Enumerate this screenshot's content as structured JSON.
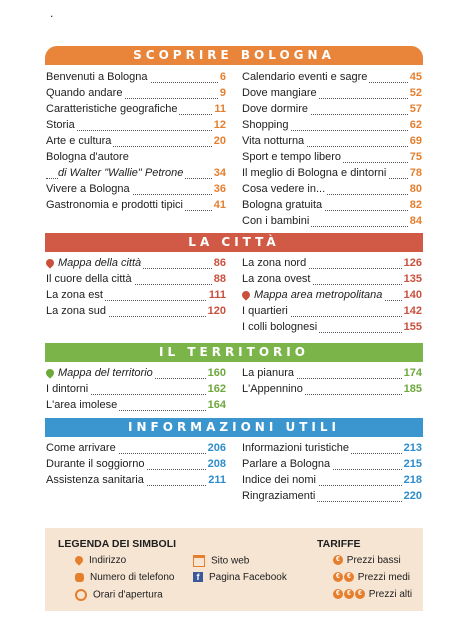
{
  "dot": ".",
  "sections": {
    "scoprire": {
      "title": "SCOPRIRE BOLOGNA",
      "left": [
        {
          "label": "Benvenuti a Bologna",
          "page": "6"
        },
        {
          "label": "Quando andare",
          "page": "9"
        },
        {
          "label": "Caratteristiche geografiche",
          "page": "11"
        },
        {
          "label": "Storia",
          "page": "12"
        },
        {
          "label": "Arte e cultura",
          "page": "20"
        },
        {
          "label": "Bologna d'autore",
          "page": ""
        },
        {
          "label": "di Walter \"Wallie\" Petrone",
          "page": "34"
        },
        {
          "label": "Vivere a Bologna",
          "page": "36"
        },
        {
          "label": "Gastronomia e prodotti tipici",
          "page": "41"
        }
      ],
      "right": [
        {
          "label": "Calendario eventi e sagre",
          "page": "45"
        },
        {
          "label": "Dove mangiare",
          "page": "52"
        },
        {
          "label": "Dove dormire",
          "page": "57"
        },
        {
          "label": "Shopping",
          "page": "62"
        },
        {
          "label": "Vita notturna",
          "page": "69"
        },
        {
          "label": "Sport e tempo libero",
          "page": "75"
        },
        {
          "label": "Il meglio di Bologna e dintorni",
          "page": "78"
        },
        {
          "label": "Cosa vedere in...",
          "page": "80"
        },
        {
          "label": "Bologna gratuita",
          "page": "82"
        },
        {
          "label": "Con i bambini",
          "page": "84"
        }
      ]
    },
    "citta": {
      "title": "LA CITTÀ",
      "left": [
        {
          "label": "Mappa della città",
          "page": "86"
        },
        {
          "label": "Il cuore della città",
          "page": "88"
        },
        {
          "label": "La zona est",
          "page": "111"
        },
        {
          "label": "La zona sud",
          "page": "120"
        }
      ],
      "right": [
        {
          "label": "La zona nord",
          "page": "126"
        },
        {
          "label": "La zona ovest",
          "page": "135"
        },
        {
          "label": "Mappa area metropolitana",
          "page": "140"
        },
        {
          "label": "I quartieri",
          "page": "142"
        },
        {
          "label": "I colli bolognesi",
          "page": "155"
        }
      ]
    },
    "territorio": {
      "title": "IL TERRITORIO",
      "left": [
        {
          "label": "Mappa del territorio",
          "page": "160"
        },
        {
          "label": "I dintorni",
          "page": "162"
        },
        {
          "label": "L'area imolese",
          "page": "164"
        }
      ],
      "right": [
        {
          "label": "La pianura",
          "page": "174"
        },
        {
          "label": "L'Appennino",
          "page": "185"
        }
      ]
    },
    "info": {
      "title": "INFORMAZIONI UTILI",
      "left": [
        {
          "label": "Come arrivare",
          "page": "206"
        },
        {
          "label": "Durante il soggiorno",
          "page": "208"
        },
        {
          "label": "Assistenza sanitaria",
          "page": "211"
        }
      ],
      "right": [
        {
          "label": "Informazioni turistiche",
          "page": "213"
        },
        {
          "label": "Parlare a Bologna",
          "page": "215"
        },
        {
          "label": "Indice dei nomi",
          "page": "218"
        },
        {
          "label": "Ringraziamenti",
          "page": "220"
        }
      ]
    }
  },
  "legend": {
    "title": "LEGENDA DEI SIMBOLI",
    "address": "Indirizzo",
    "phone": "Numero di telefono",
    "hours": "Orari d'apertura",
    "web": "Sito web",
    "facebook": "Pagina Facebook",
    "tariffe_title": "TARIFFE",
    "low": "Prezzi bassi",
    "mid": "Prezzi medi",
    "high": "Prezzi alti",
    "coin_symbol": "€"
  },
  "icons": {
    "address": "location-pin-icon",
    "phone": "phone-icon",
    "hours": "clock-icon",
    "web": "monitor-icon",
    "facebook": "facebook-icon"
  },
  "colors": {
    "orange": "#e8853a",
    "red": "#d05a45",
    "green": "#7bb54a",
    "blue": "#3b96cf"
  }
}
